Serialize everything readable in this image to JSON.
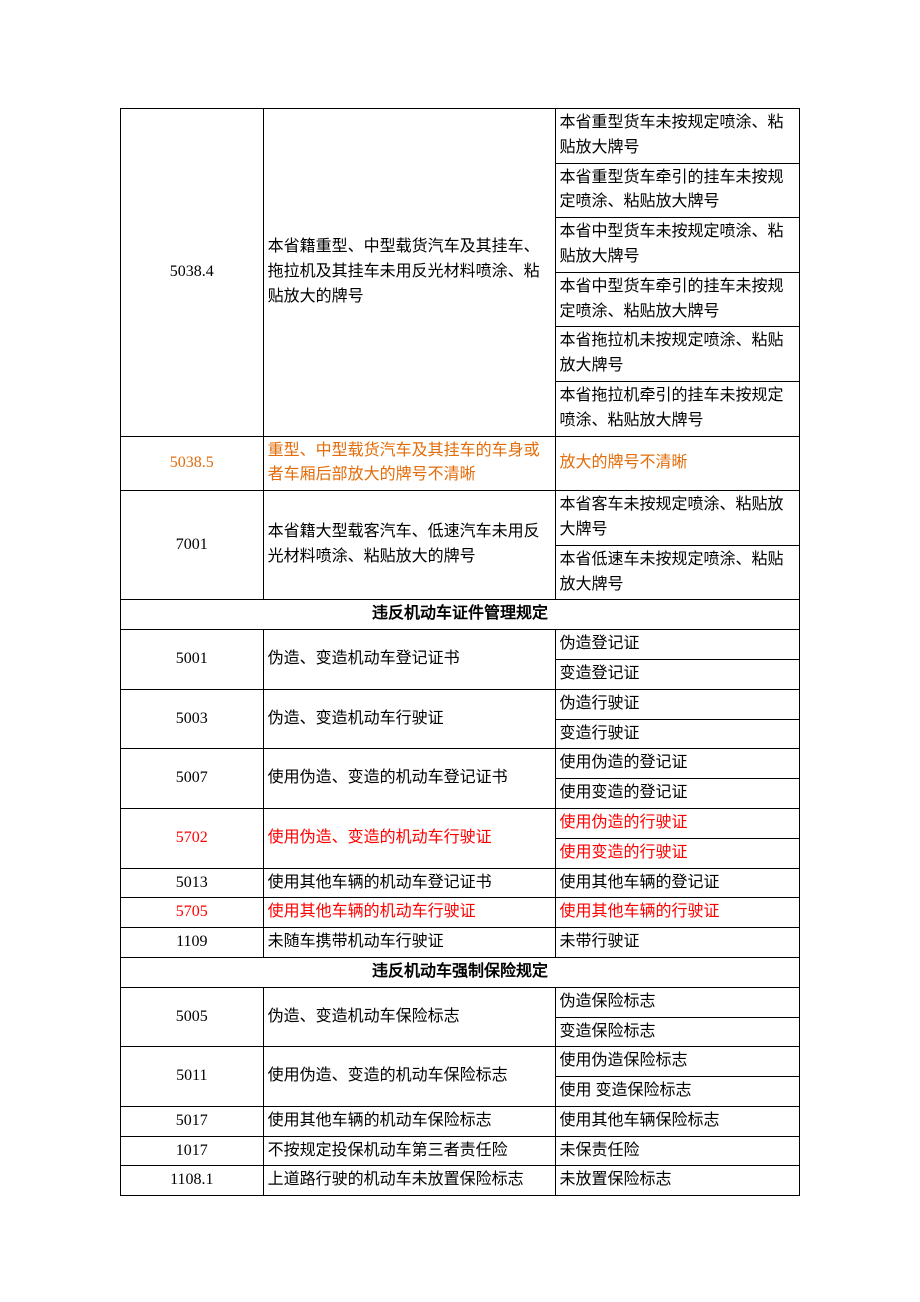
{
  "colors": {
    "text": "#000000",
    "orange": "#e36c09",
    "red": "#ff0000",
    "border": "#000000",
    "background": "#ffffff"
  },
  "rows": {
    "r5038_4": {
      "code": "5038.4",
      "desc": "本省籍重型、中型载货汽车及其挂车、拖拉机及其挂车未用反光材料喷涂、粘贴放大的牌号",
      "sub": [
        "本省重型货车未按规定喷涂、粘贴放大牌号",
        "本省重型货车牵引的挂车未按规定喷涂、粘贴放大牌号",
        "本省中型货车未按规定喷涂、粘贴放大牌号",
        "本省中型货车牵引的挂车未按规定喷涂、粘贴放大牌号",
        "本省拖拉机未按规定喷涂、粘贴放大牌号",
        "本省拖拉机牵引的挂车未按规定喷涂、粘贴放大牌号"
      ]
    },
    "r5038_5": {
      "code": "5038.5",
      "desc": "重型、中型载货汽车及其挂车的车身或者车厢后部放大的牌号不清晰",
      "sub": [
        "放大的牌号不清晰"
      ]
    },
    "r7001": {
      "code": "7001",
      "desc": "本省籍大型载客汽车、低速汽车未用反光材料喷涂、粘贴放大的牌号",
      "sub": [
        "本省客车未按规定喷涂、粘贴放大牌号",
        "本省低速车未按规定喷涂、粘贴放大牌号"
      ]
    },
    "section1": "违反机动车证件管理规定",
    "r5001": {
      "code": "5001",
      "desc": "伪造、变造机动车登记证书",
      "sub": [
        "伪造登记证",
        "变造登记证"
      ]
    },
    "r5003": {
      "code": "5003",
      "desc": "伪造、变造机动车行驶证",
      "sub": [
        "伪造行驶证",
        "变造行驶证"
      ]
    },
    "r5007": {
      "code": "5007",
      "desc": "使用伪造、变造的机动车登记证书",
      "sub": [
        "使用伪造的登记证",
        "使用变造的登记证"
      ]
    },
    "r5702": {
      "code": "5702",
      "desc": "使用伪造、变造的机动车行驶证",
      "sub": [
        "使用伪造的行驶证",
        "使用变造的行驶证"
      ]
    },
    "r5013": {
      "code": "5013",
      "desc": "使用其他车辆的机动车登记证书",
      "sub": [
        "使用其他车辆的登记证"
      ]
    },
    "r5705": {
      "code": "5705",
      "desc": "使用其他车辆的机动车行驶证",
      "sub": [
        "使用其他车辆的行驶证"
      ]
    },
    "r1109": {
      "code": "1109",
      "desc": "未随车携带机动车行驶证",
      "sub": [
        "未带行驶证"
      ]
    },
    "section2": "违反机动车强制保险规定",
    "r5005": {
      "code": "5005",
      "desc": "伪造、变造机动车保险标志",
      "sub": [
        "伪造保险标志",
        "变造保险标志"
      ]
    },
    "r5011": {
      "code": "5011",
      "desc": "使用伪造、变造的机动车保险标志",
      "sub": [
        "使用伪造保险标志",
        "使用  变造保险标志"
      ]
    },
    "r5017": {
      "code": "5017",
      "desc": "使用其他车辆的机动车保险标志",
      "sub": [
        "使用其他车辆保险标志"
      ]
    },
    "r1017": {
      "code": "1017",
      "desc": "不按规定投保机动车第三者责任险",
      "sub": [
        "未保责任险"
      ]
    },
    "r1108_1": {
      "code": "1108.1",
      "desc": "上道路行驶的机动车未放置保险标志",
      "sub": [
        "未放置保险标志"
      ]
    }
  }
}
